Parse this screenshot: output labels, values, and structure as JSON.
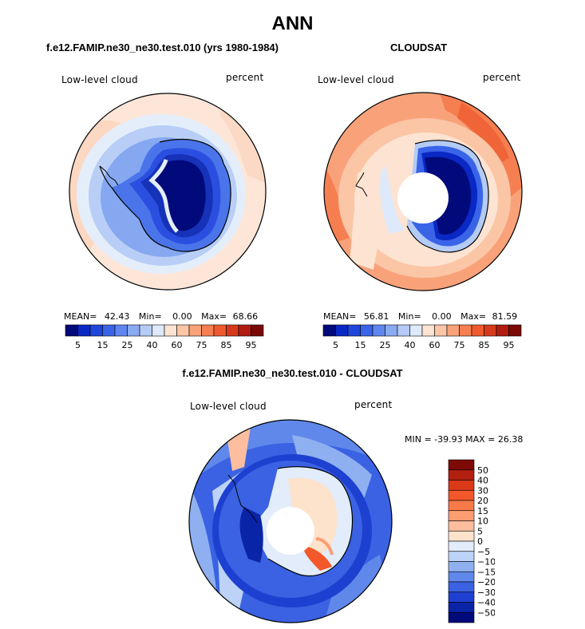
{
  "page_title": "ANN",
  "panels": [
    {
      "header": "f.e12.FAMIP.ne30_ne30.test.010 (yrs 1980-1984)",
      "variable": "Low-level cloud",
      "units": "percent",
      "stats": {
        "mean_label": "MEAN=",
        "mean": "42.43",
        "min_label": "Min=",
        "min": "0.00",
        "max_label": "Max=",
        "max": "68.66"
      }
    },
    {
      "header": "CLOUDSAT",
      "variable": "Low-level cloud",
      "units": "percent",
      "stats": {
        "mean_label": "MEAN=",
        "mean": "56.81",
        "min_label": "Min=",
        "min": "0.00",
        "max_label": "Max=",
        "max": "81.59"
      }
    }
  ],
  "colorbar_top": {
    "ticks": [
      "5",
      "15",
      "25",
      "40",
      "60",
      "75",
      "85",
      "95"
    ],
    "colors": [
      "#000a7a",
      "#0a28c4",
      "#1e46dc",
      "#3a64e8",
      "#5f86ef",
      "#8aaaf2",
      "#b4cbf6",
      "#deeafb",
      "#fde3d2",
      "#fbc6a6",
      "#f9a27a",
      "#f67f52",
      "#ee5a2e",
      "#d63a1c",
      "#b01c10",
      "#7a0a06"
    ]
  },
  "diff_panel": {
    "header": "f.e12.FAMIP.ne30_ne30.test.010 - CLOUDSAT",
    "variable": "Low-level cloud",
    "units": "percent",
    "min_max": "MIN = -39.93 MAX =  26.38"
  },
  "colorbar_diff": {
    "labels": [
      "50",
      "40",
      "30",
      "20",
      "15",
      "10",
      "5",
      "0",
      "−5",
      "−10",
      "−15",
      "−20",
      "−30",
      "−40",
      "−50"
    ],
    "colors": [
      "#7e0a06",
      "#b2200f",
      "#da3a1a",
      "#f2582a",
      "#f87a4a",
      "#fb9e72",
      "#fcbe9e",
      "#fde2cc",
      "#e2ecfa",
      "#bcd2f6",
      "#8fb0f0",
      "#6088ea",
      "#3a62e2",
      "#1e40d0",
      "#0a24a8",
      "#000a7a"
    ]
  }
}
